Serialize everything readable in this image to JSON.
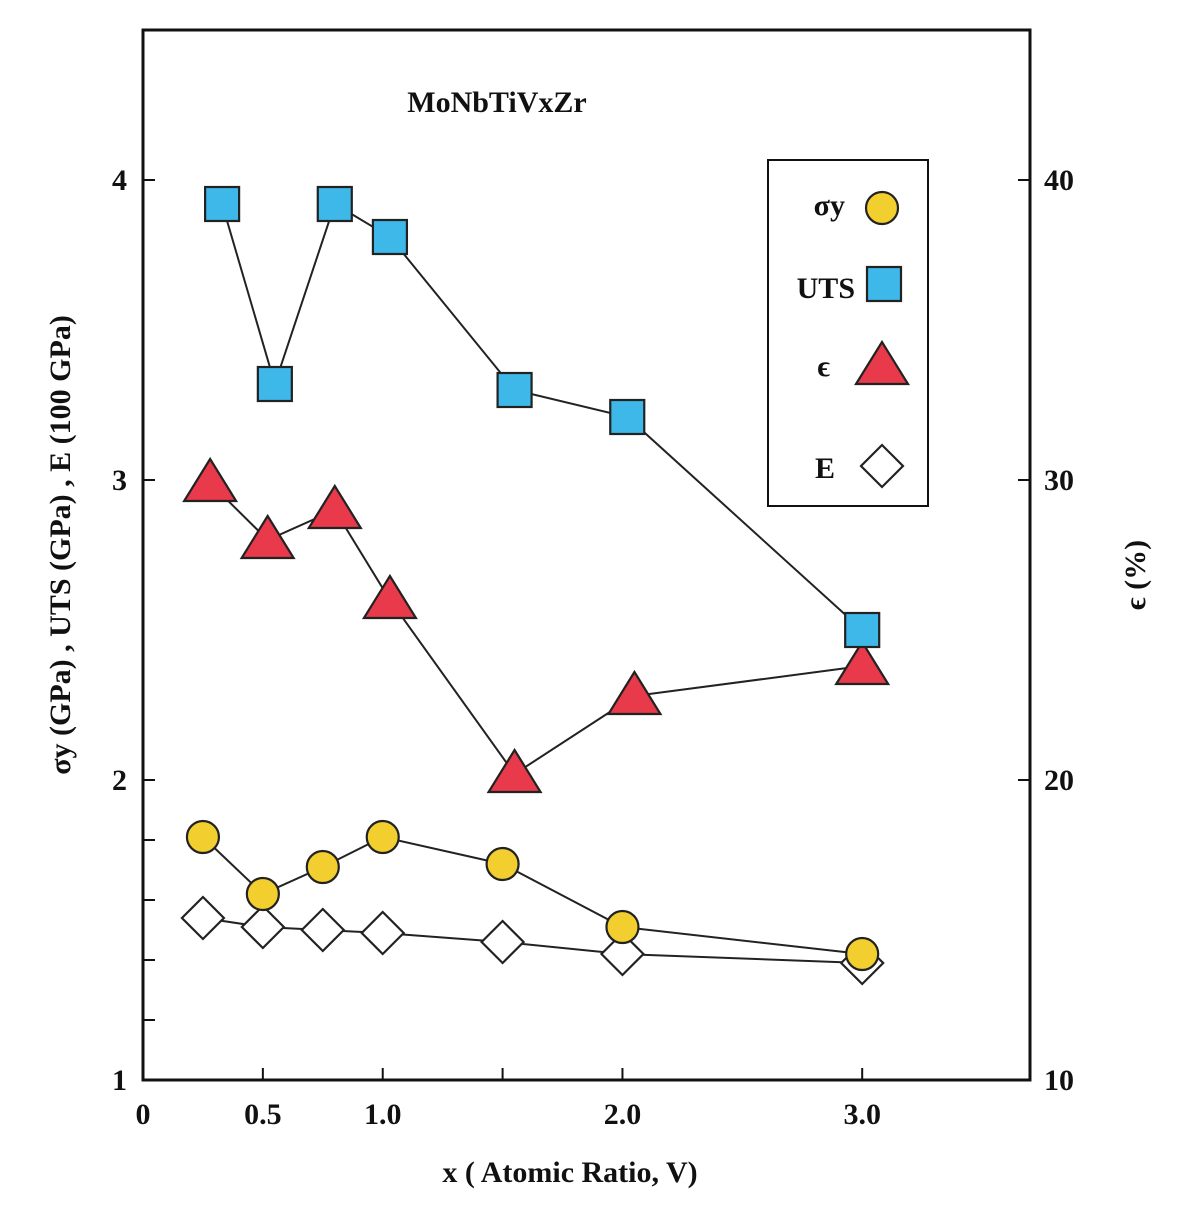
{
  "chart_data": {
    "type": "scatter",
    "title": "MoNbTiVxZr",
    "xlabel": "x ( Atomic Ratio, V)",
    "ylabel_left": "σy (GPa) , UTS (GPa) , E (100 GPa)",
    "ylabel_right": "ϵ (%)",
    "xlim": [
      0,
      3.7
    ],
    "ylim_left": [
      1,
      4.5
    ],
    "ylim_right": [
      10,
      45
    ],
    "x_ticks": [
      0,
      0.5,
      1.0,
      1.5,
      2.0,
      3.0
    ],
    "x_tick_labels": [
      "0",
      "0.5",
      "1.0",
      "",
      "2.0",
      "3.0"
    ],
    "y_left_ticks": [
      1,
      1.2,
      1.4,
      1.6,
      1.8,
      2,
      3,
      4
    ],
    "y_left_tick_labels": [
      "1",
      "",
      "",
      "",
      "",
      "2",
      "3",
      "4"
    ],
    "y_right_ticks": [
      10,
      20,
      30,
      40
    ],
    "y_right_tick_labels": [
      "10",
      "20",
      "30",
      "40"
    ],
    "grid": false,
    "legend_position": "top-right",
    "series": [
      {
        "name": "σy",
        "marker": "circle",
        "color": "#f2cf2e",
        "axis": "left",
        "x": [
          0.25,
          0.5,
          0.75,
          1.0,
          1.5,
          2.0,
          3.0
        ],
        "y": [
          1.81,
          1.62,
          1.71,
          1.81,
          1.72,
          1.51,
          1.42
        ]
      },
      {
        "name": "UTS",
        "marker": "square",
        "color": "#3db8e8",
        "axis": "left",
        "x": [
          0.33,
          0.55,
          0.8,
          1.03,
          1.55,
          2.02,
          3.0
        ],
        "y": [
          3.92,
          3.32,
          3.92,
          3.81,
          3.3,
          3.21,
          2.5
        ]
      },
      {
        "name": "ϵ",
        "marker": "triangle",
        "color": "#e83a4a",
        "axis": "right",
        "x": [
          0.28,
          0.52,
          0.8,
          1.03,
          1.55,
          2.05,
          3.0
        ],
        "y": [
          29.9,
          28.0,
          29.0,
          26.0,
          20.2,
          22.8,
          23.8
        ]
      },
      {
        "name": "E",
        "marker": "diamond",
        "color": "#ffffff",
        "axis": "left",
        "x": [
          0.25,
          0.5,
          0.75,
          1.0,
          1.5,
          2.0,
          3.0
        ],
        "y": [
          1.54,
          1.51,
          1.5,
          1.49,
          1.46,
          1.42,
          1.39
        ]
      }
    ]
  }
}
